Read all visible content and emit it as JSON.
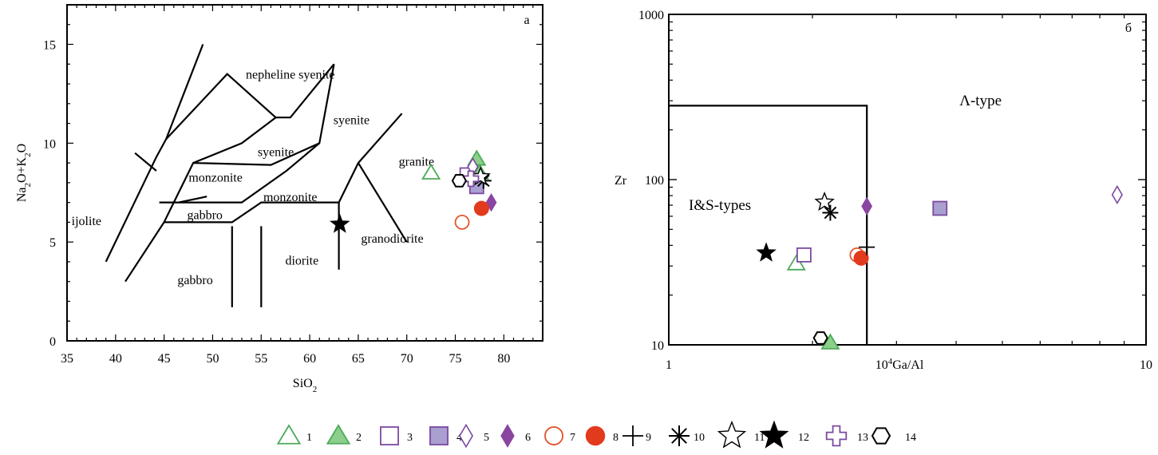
{
  "chart_data": [
    {
      "type": "scatter",
      "panel": "a",
      "panel_label": "a",
      "xlabel": "SiO",
      "xlabel_sub": "2",
      "ylabel_parts": [
        "Na",
        "2",
        "O+K",
        "2",
        "O"
      ],
      "xlim": [
        35,
        84
      ],
      "ylim": [
        0,
        17
      ],
      "xticks": [
        35,
        40,
        45,
        50,
        55,
        60,
        65,
        70,
        75,
        80
      ],
      "yticks": [
        0,
        5,
        10,
        15
      ],
      "field_lines": [
        [
          [
            39,
            4
          ],
          [
            44.2,
            9.3
          ],
          [
            45.2,
            10.2
          ],
          [
            51.5,
            13.5
          ],
          [
            56.5,
            11.3
          ],
          [
            58,
            11.3
          ],
          [
            62.5,
            14
          ]
        ],
        [
          [
            41,
            3
          ],
          [
            45,
            6
          ],
          [
            52,
            6
          ],
          [
            55,
            7
          ],
          [
            63,
            7
          ],
          [
            65,
            9
          ],
          [
            69.5,
            11.5
          ]
        ],
        [
          [
            42,
            9.5
          ],
          [
            44.2,
            8.6
          ]
        ],
        [
          [
            45.2,
            10.2
          ],
          [
            49,
            15
          ]
        ],
        [
          [
            45,
            6
          ],
          [
            48,
            9
          ],
          [
            53,
            10
          ],
          [
            56.5,
            11.3
          ]
        ],
        [
          [
            48,
            9
          ],
          [
            56,
            8.9
          ],
          [
            61,
            10
          ],
          [
            62.5,
            14
          ]
        ],
        [
          [
            44.5,
            7
          ],
          [
            53,
            7
          ],
          [
            57.6,
            8.6
          ],
          [
            61,
            10
          ]
        ],
        [
          [
            46.5,
            7
          ],
          [
            49.4,
            7.3
          ]
        ],
        [
          [
            52,
            1.7
          ],
          [
            52,
            5.8
          ]
        ],
        [
          [
            55,
            1.7
          ],
          [
            55,
            5.8
          ]
        ],
        [
          [
            63,
            3.6
          ],
          [
            63,
            7
          ]
        ],
        [
          [
            65,
            9
          ],
          [
            70,
            5
          ]
        ]
      ],
      "field_labels": [
        {
          "text": "nepheline syenite",
          "x": 58,
          "y": 13.5
        },
        {
          "text": "syenite",
          "x": 64.3,
          "y": 11.2
        },
        {
          "text": "syenite",
          "x": 56.5,
          "y": 9.6
        },
        {
          "text": "granite",
          "x": 71,
          "y": 9.1
        },
        {
          "text": "monzonite",
          "x": 50.3,
          "y": 8.3
        },
        {
          "text": "monzonite",
          "x": 58,
          "y": 7.3
        },
        {
          "text": "gabbro",
          "x": 49.2,
          "y": 6.4
        },
        {
          "text": "gabbro",
          "x": 48.2,
          "y": 3.1
        },
        {
          "text": "ijolite",
          "x": 37,
          "y": 6.1
        },
        {
          "text": "diorite",
          "x": 59.2,
          "y": 4.1
        },
        {
          "text": "granodiorite",
          "x": 68.5,
          "y": 5.2
        }
      ],
      "points": [
        {
          "x": 72.5,
          "y": 8.5,
          "sym": "1"
        },
        {
          "x": 77.2,
          "y": 9.2,
          "sym": "2"
        },
        {
          "x": 77.5,
          "y": 8.5,
          "sym": "2"
        },
        {
          "x": 76.2,
          "y": 8.4,
          "sym": "3"
        },
        {
          "x": 77.2,
          "y": 7.8,
          "sym": "4"
        },
        {
          "x": 76.8,
          "y": 8.8,
          "sym": "5"
        },
        {
          "x": 78.7,
          "y": 7.0,
          "sym": "6"
        },
        {
          "x": 75.7,
          "y": 6.0,
          "sym": "7"
        },
        {
          "x": 77.7,
          "y": 6.7,
          "sym": "8"
        },
        {
          "x": 77.9,
          "y": 8.1,
          "sym": "10"
        },
        {
          "x": 77.6,
          "y": 8.3,
          "sym": "11"
        },
        {
          "x": 63.1,
          "y": 5.9,
          "sym": "12"
        },
        {
          "x": 76.6,
          "y": 8.2,
          "sym": "13"
        },
        {
          "x": 75.4,
          "y": 8.1,
          "sym": "14"
        }
      ]
    },
    {
      "type": "scatter",
      "panel": "б",
      "panel_label": "б",
      "xscale": "log",
      "yscale": "log",
      "xlabel_sup": "4",
      "xlabel_pre": "10",
      "xlabel_main": "Ga/Al",
      "ylabel": "Zr",
      "xlim": [
        1,
        10
      ],
      "ylim": [
        10,
        1000
      ],
      "xticks": [
        1,
        10
      ],
      "yticks": [
        10,
        100,
        1000
      ],
      "boundary": [
        [
          1,
          280
        ],
        [
          2.6,
          280
        ],
        [
          2.6,
          10
        ]
      ],
      "field_labels": [
        {
          "text": "Λ-type",
          "x": 4.5,
          "y": 300
        },
        {
          "text": "I&S-types",
          "x": 1.28,
          "y": 70
        }
      ],
      "points": [
        {
          "x": 1.85,
          "y": 31,
          "sym": "1"
        },
        {
          "x": 2.18,
          "y": 10.3,
          "sym": "2"
        },
        {
          "x": 1.92,
          "y": 35,
          "sym": "3"
        },
        {
          "x": 3.7,
          "y": 67,
          "sym": "4"
        },
        {
          "x": 8.7,
          "y": 81,
          "sym": "5"
        },
        {
          "x": 2.6,
          "y": 69,
          "sym": "6"
        },
        {
          "x": 2.48,
          "y": 35,
          "sym": "7"
        },
        {
          "x": 2.53,
          "y": 33.5,
          "sym": "8"
        },
        {
          "x": 2.6,
          "y": 39,
          "sym": "9"
        },
        {
          "x": 2.18,
          "y": 63,
          "sym": "10"
        },
        {
          "x": 2.12,
          "y": 73,
          "sym": "11"
        },
        {
          "x": 1.6,
          "y": 36,
          "sym": "12"
        },
        {
          "x": 2.08,
          "y": 11,
          "sym": "14"
        }
      ]
    }
  ],
  "legend": [
    {
      "sym": "1",
      "label": "1"
    },
    {
      "sym": "2",
      "label": "2"
    },
    {
      "sym": "3",
      "label": "3"
    },
    {
      "sym": "4",
      "label": "4"
    },
    {
      "sym": "5",
      "label": "5"
    },
    {
      "sym": "6",
      "label": "6"
    },
    {
      "sym": "7",
      "label": "7"
    },
    {
      "sym": "8",
      "label": "8"
    },
    {
      "sym": "9",
      "label": "9"
    },
    {
      "sym": "10",
      "label": "10"
    },
    {
      "sym": "11",
      "label": "11"
    },
    {
      "sym": "12",
      "label": "12"
    },
    {
      "sym": "13",
      "label": "13"
    },
    {
      "sym": "14",
      "label": "14"
    }
  ],
  "colors": {
    "green": "#4daa5a",
    "green_fill": "#8ccf8a",
    "purple": "#7b4aa0",
    "purple_fill": "#a99fd0",
    "violet_fill": "#8a45a0",
    "orange": "#e0552e",
    "red_fill": "#e23a1c",
    "black": "#000000"
  }
}
